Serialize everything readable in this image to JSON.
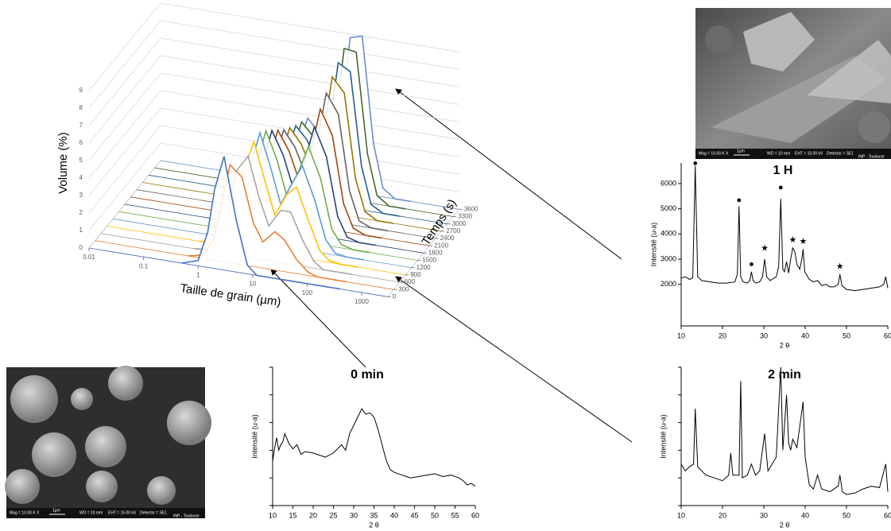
{
  "chart_data": [
    {
      "type": "waterfall",
      "ylabel": "Volume (%)",
      "xlabel": "Taille de grain (µm)",
      "zlabel": "Temps (s)",
      "xlog": true,
      "xlim": [
        0.01,
        3000
      ],
      "ylim": [
        0,
        9
      ],
      "zlim": [
        0,
        3600
      ],
      "xticks": [
        0.01,
        0.1,
        1,
        10,
        100,
        1000
      ],
      "yticks": [
        0,
        1,
        2,
        3,
        4,
        5,
        6,
        7,
        8,
        9
      ],
      "zticks": [
        0,
        300,
        600,
        900,
        1200,
        1500,
        1800,
        2100,
        2400,
        2700,
        3000,
        3300,
        3600
      ],
      "grid": true,
      "x": [
        0.5,
        1,
        1.5,
        2,
        3,
        5,
        8,
        12,
        20,
        30,
        50,
        80,
        120,
        200,
        400
      ],
      "series": [
        {
          "z": 0,
          "color": "#4472c4",
          "values": [
            0,
            0.3,
            2.0,
            4.5,
            6.5,
            3.0,
            0.5,
            0,
            0,
            0,
            0,
            0,
            0,
            0,
            0
          ]
        },
        {
          "z": 300,
          "color": "#ed7d31",
          "values": [
            0,
            0.2,
            1.2,
            3.0,
            5.6,
            5.0,
            2.5,
            1.5,
            2.2,
            1.8,
            0.8,
            0.2,
            0,
            0,
            0
          ]
        },
        {
          "z": 600,
          "color": "#a5a5a5",
          "values": [
            0,
            0.1,
            0.8,
            2.2,
            4.8,
            5.8,
            3.5,
            2.0,
            3.0,
            3.0,
            1.5,
            0.4,
            0,
            0,
            0
          ]
        },
        {
          "z": 900,
          "color": "#ffc000",
          "values": [
            0,
            0.1,
            0.6,
            1.8,
            4.2,
            6.2,
            4.0,
            2.2,
            3.5,
            4.0,
            2.2,
            0.6,
            0.1,
            0,
            0
          ]
        },
        {
          "z": 1200,
          "color": "#5b9bd5",
          "values": [
            0,
            0,
            0.5,
            1.5,
            3.8,
            6.3,
            4.3,
            2.4,
            3.8,
            4.8,
            3.0,
            0.8,
            0.1,
            0,
            0
          ]
        },
        {
          "z": 1500,
          "color": "#70ad47",
          "values": [
            0,
            0,
            0.4,
            1.3,
            3.4,
            6.0,
            4.4,
            2.5,
            4.0,
            5.5,
            3.8,
            1.0,
            0.2,
            0,
            0
          ]
        },
        {
          "z": 1800,
          "color": "#264478",
          "values": [
            0,
            0,
            0.3,
            1.1,
            3.0,
            5.6,
            4.3,
            2.6,
            4.2,
            6.2,
            4.6,
            1.3,
            0.2,
            0,
            0
          ]
        },
        {
          "z": 2100,
          "color": "#9e480e",
          "values": [
            0,
            0,
            0.3,
            1.0,
            2.7,
            5.2,
            4.1,
            2.6,
            4.3,
            6.8,
            5.4,
            1.6,
            0.3,
            0,
            0
          ]
        },
        {
          "z": 2400,
          "color": "#636363",
          "values": [
            0,
            0,
            0.2,
            0.9,
            2.4,
            4.8,
            3.9,
            2.6,
            4.3,
            7.3,
            6.2,
            1.9,
            0.3,
            0,
            0
          ]
        },
        {
          "z": 2700,
          "color": "#997300",
          "values": [
            0,
            0,
            0.2,
            0.8,
            2.2,
            4.5,
            3.7,
            2.5,
            4.2,
            7.8,
            7.0,
            2.2,
            0.4,
            0,
            0
          ]
        },
        {
          "z": 3000,
          "color": "#255e91",
          "values": [
            0,
            0,
            0.2,
            0.7,
            2.0,
            4.2,
            3.5,
            2.4,
            4.1,
            8.2,
            7.8,
            2.5,
            0.4,
            0,
            0
          ]
        },
        {
          "z": 3300,
          "color": "#43682b",
          "values": [
            0,
            0,
            0.1,
            0.6,
            1.8,
            4.0,
            3.3,
            2.3,
            4.0,
            8.6,
            8.5,
            2.8,
            0.5,
            0,
            0
          ]
        },
        {
          "z": 3600,
          "color": "#698ed0",
          "values": [
            0,
            0,
            0.1,
            0.5,
            1.6,
            3.8,
            3.1,
            2.2,
            3.9,
            8.8,
            9.0,
            3.0,
            0.5,
            0,
            0
          ]
        }
      ]
    },
    {
      "type": "line",
      "title": "1 H",
      "ylabel": "Intensité (u-a)",
      "xlabel": "2 θ",
      "color": "#000000",
      "xlim": [
        10,
        60
      ],
      "ylim": [
        350,
        6820
      ],
      "xticks": [
        10,
        20,
        30,
        40,
        50,
        60
      ],
      "yticks": [
        2000,
        3000,
        4000,
        5000,
        6000
      ],
      "ytick_labels": true,
      "x": [
        10,
        11,
        12,
        12.8,
        13.4,
        14,
        15,
        17,
        19,
        21,
        23,
        23.6,
        24,
        24.4,
        25,
        26,
        26.6,
        27,
        27.4,
        28,
        29,
        29.7,
        30.2,
        30.7,
        31.5,
        33,
        33.6,
        34.1,
        34.6,
        35,
        35.5,
        36,
        36.5,
        37,
        37.5,
        38,
        38.7,
        39.2,
        39.5,
        39.9,
        41,
        42,
        43,
        44,
        45,
        46,
        47,
        48,
        48.4,
        48.9,
        50,
        52,
        54,
        56,
        58,
        59,
        59.5,
        60
      ],
      "values": [
        2250,
        2300,
        2200,
        2250,
        6700,
        2300,
        2150,
        2100,
        2050,
        2050,
        2100,
        2400,
        5100,
        2300,
        2100,
        2050,
        2150,
        2500,
        2150,
        2050,
        2100,
        2300,
        3000,
        2300,
        2150,
        2300,
        2700,
        5400,
        2600,
        2500,
        2900,
        2450,
        3000,
        3450,
        3300,
        2800,
        2600,
        3000,
        3400,
        2500,
        2200,
        2100,
        2150,
        1950,
        2000,
        1900,
        1900,
        2000,
        2400,
        1950,
        1800,
        1750,
        1800,
        1850,
        1900,
        2000,
        2300,
        1850
      ],
      "annotations": [
        {
          "text": "●",
          "x": 13.4,
          "y": 6800
        },
        {
          "text": "●",
          "x": 24,
          "y": 5340
        },
        {
          "text": "●",
          "x": 27,
          "y": 2800
        },
        {
          "text": "●",
          "x": 34.1,
          "y": 5840
        },
        {
          "text": "★",
          "x": 30.2,
          "y": 3420
        },
        {
          "text": "★",
          "x": 37,
          "y": 3760
        },
        {
          "text": "★",
          "x": 39.5,
          "y": 3700
        },
        {
          "text": "★",
          "x": 48.4,
          "y": 2700
        }
      ]
    },
    {
      "type": "line",
      "title": "0 min",
      "ylabel": "Intensité (u-a)",
      "xlabel": "2 θ",
      "color": "#000000",
      "xlim": [
        10,
        60
      ],
      "ylim": [
        0,
        100
      ],
      "xticks": [
        10,
        15,
        20,
        25,
        30,
        35,
        40,
        45,
        50,
        55,
        60
      ],
      "yticks": [
        0,
        20,
        40,
        60,
        80,
        100
      ],
      "ytick_labels": false,
      "x": [
        10,
        10.5,
        11,
        11.5,
        12,
        12.5,
        13,
        14,
        15,
        16,
        17,
        18,
        20,
        22,
        23,
        25,
        27,
        28,
        29,
        30,
        31,
        32,
        33,
        34,
        35,
        36,
        37,
        38,
        39,
        40,
        42,
        44,
        46,
        48,
        50,
        52,
        54,
        56,
        57,
        58,
        59,
        60
      ],
      "values": [
        32,
        42,
        49,
        40,
        44,
        46,
        52,
        45,
        41,
        44,
        37,
        39,
        38,
        36,
        35,
        38,
        44,
        40,
        52,
        58,
        64,
        70,
        66,
        67,
        64,
        55,
        44,
        33,
        26,
        24,
        22,
        20,
        21,
        22,
        23,
        21,
        22,
        20,
        18,
        15,
        16,
        14
      ]
    },
    {
      "type": "line",
      "title": "2 min",
      "ylabel": "Intensité (u-a)",
      "xlabel": "2 θ",
      "color": "#000000",
      "xlim": [
        10,
        60
      ],
      "ylim": [
        0,
        100
      ],
      "xticks": [
        10,
        20,
        30,
        40,
        50,
        60
      ],
      "yticks": [
        0,
        20,
        40,
        60,
        80,
        100
      ],
      "ytick_labels": false,
      "x": [
        10,
        11,
        12,
        13,
        13.4,
        14,
        16,
        18,
        20,
        21.5,
        22,
        22.5,
        24,
        24.4,
        24.8,
        26,
        27,
        28,
        29,
        30.2,
        31,
        32,
        33,
        34.1,
        34.6,
        35.5,
        36,
        36.5,
        37,
        38,
        39.5,
        40,
        41,
        42,
        43,
        44,
        46,
        48,
        48.4,
        49,
        50,
        52,
        54,
        56,
        58,
        59.5,
        60
      ],
      "values": [
        30,
        25,
        28,
        30,
        70,
        28,
        22,
        20,
        18,
        22,
        38,
        22,
        22,
        90,
        20,
        22,
        30,
        22,
        25,
        52,
        25,
        30,
        35,
        100,
        40,
        80,
        45,
        40,
        48,
        42,
        75,
        35,
        15,
        12,
        22,
        12,
        10,
        14,
        22,
        10,
        8,
        9,
        12,
        14,
        13,
        30,
        10
      ]
    }
  ],
  "images": {
    "sem_top": {
      "mag": "Mag = 10.00 K X",
      "scale": "1µm",
      "wd": "WD = 10 mm",
      "eht": "EHT = 15.00 kV",
      "detector": "Detector = SE1",
      "lab": "INP - Toulouse"
    },
    "sem_bottom": {
      "mag": "Mag = 10.00 K X",
      "scale": "1µm",
      "wd": "WD = 10 mm",
      "eht": "EHT = 15.00 kV",
      "detector": "Detector = SE1",
      "lab": "INP - Toulouse"
    }
  }
}
